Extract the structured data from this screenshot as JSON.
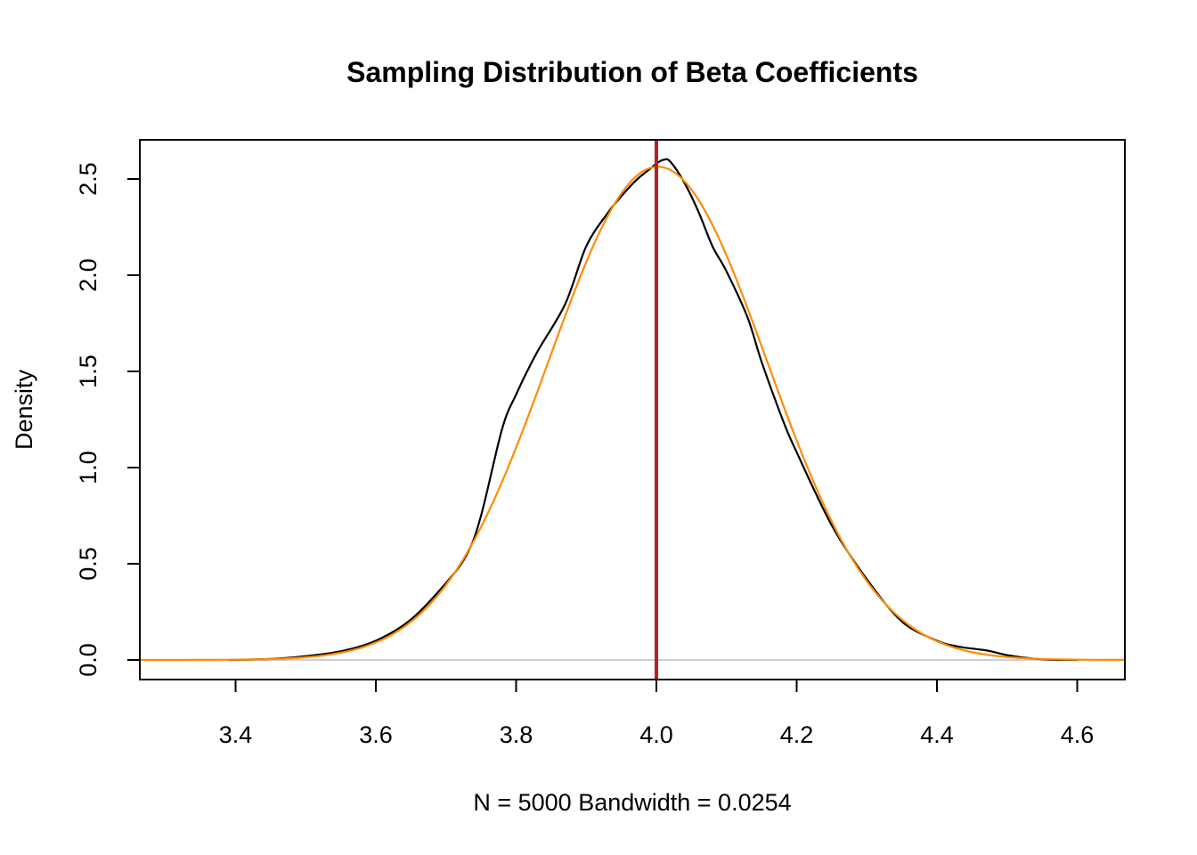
{
  "chart_data": {
    "type": "line",
    "title": "Sampling Distribution of Beta Coefficients",
    "xlabel": "N = 5000   Bandwidth = 0.0254",
    "ylabel": "Density",
    "xlim": [
      3.26,
      4.67
    ],
    "ylim": [
      0,
      2.6
    ],
    "x_ticks": [
      "3.4",
      "3.6",
      "3.8",
      "4.0",
      "4.2",
      "4.4",
      "4.6"
    ],
    "y_ticks": [
      "0.0",
      "0.5",
      "1.0",
      "1.5",
      "2.0",
      "2.5"
    ],
    "grid": false,
    "series": [
      {
        "color": "#000000",
        "style": "kernel-density",
        "x": [
          3.39,
          3.45,
          3.5,
          3.55,
          3.6,
          3.65,
          3.7,
          3.73,
          3.75,
          3.78,
          3.8,
          3.83,
          3.87,
          3.9,
          3.93,
          3.95,
          3.97,
          3.99,
          4.0,
          4.01,
          4.02,
          4.04,
          4.06,
          4.08,
          4.1,
          4.13,
          4.15,
          4.18,
          4.2,
          4.25,
          4.3,
          4.35,
          4.4,
          4.43,
          4.47,
          4.5,
          4.53,
          4.56,
          4.6
        ],
        "y": [
          0.0,
          0.005,
          0.02,
          0.045,
          0.1,
          0.21,
          0.4,
          0.55,
          0.75,
          1.2,
          1.38,
          1.6,
          1.85,
          2.15,
          2.32,
          2.41,
          2.49,
          2.55,
          2.58,
          2.6,
          2.59,
          2.48,
          2.33,
          2.15,
          2.02,
          1.78,
          1.55,
          1.25,
          1.08,
          0.7,
          0.42,
          0.2,
          0.1,
          0.07,
          0.05,
          0.025,
          0.01,
          0.002,
          0.0
        ]
      },
      {
        "color": "#ff8c00",
        "style": "normal",
        "mean": 4.002,
        "sd": 0.1556
      }
    ],
    "reference_line": {
      "x": 4.0,
      "color": "#b22222"
    },
    "baseline_color": "#bebebe"
  }
}
